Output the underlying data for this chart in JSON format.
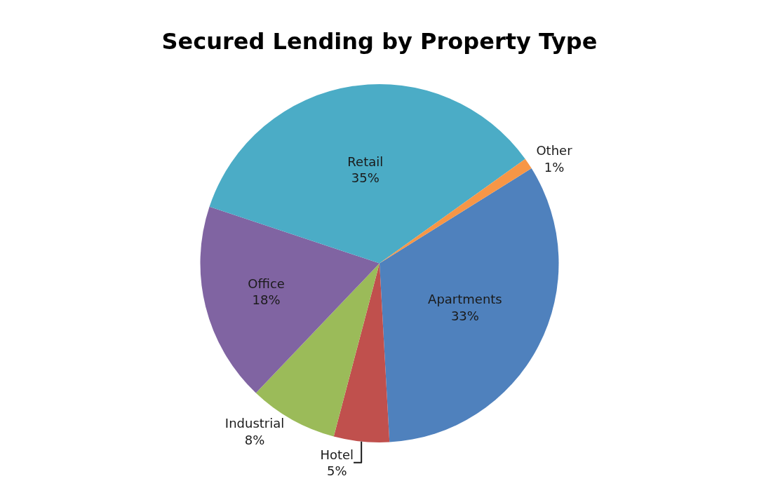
{
  "chart_data": {
    "type": "pie",
    "title": "Secured Lending by Property Type",
    "categories": [
      "Apartments",
      "Hotel",
      "Industrial",
      "Office",
      "Retail",
      "Other"
    ],
    "values": [
      33,
      5,
      8,
      18,
      35,
      1
    ],
    "value_labels": [
      "33%",
      "5%",
      "8%",
      "18%",
      "35%",
      "1%"
    ],
    "colors": [
      "#4f81bd",
      "#c0504d",
      "#9bbb59",
      "#8064a2",
      "#4bacc6",
      "#f79646"
    ],
    "legend": false
  }
}
